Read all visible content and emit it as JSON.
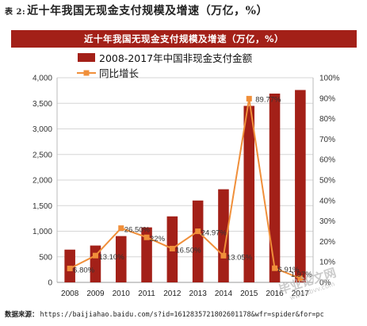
{
  "caption": {
    "tag": "表 2:",
    "title": "近十年我国无现金支付规模及增速（万亿，%）"
  },
  "banner": "近十年我国无现金支付规模及增速（万亿，%）",
  "source": {
    "label": "数据来源：",
    "url": "https://baijiahao.baidu.com/s?id=1612835721802601178&wfr=spider&for=pc"
  },
  "watermark": {
    "text": "毕业论文网",
    "subtext": "www.sbvv.com"
  },
  "colors": {
    "bar": "#a32018",
    "line": "#f08f3a",
    "banner": "#a32018",
    "grid": "#d6d6d6"
  },
  "chart_data": {
    "type": "bar",
    "categories": [
      "2008",
      "2009",
      "2010",
      "2011",
      "2012",
      "2013",
      "2014",
      "2015",
      "2016",
      "2017"
    ],
    "series": [
      {
        "name": "2008-2017年中国非现金支付金额",
        "type": "bar",
        "axis": "left",
        "values": [
          640,
          720,
          905,
          1075,
          1290,
          1600,
          1820,
          3450,
          3690,
          3760
        ]
      },
      {
        "name": "同比增长",
        "type": "line",
        "axis": "right",
        "values": [
          6.8,
          13.1,
          26.5,
          22.0,
          16.5,
          24.97,
          13.05,
          89.77,
          6.91,
          1.97
        ],
        "labels": [
          "6.80%",
          "13.10%",
          "26.50%",
          "22%",
          "16.50%",
          "24.97%",
          "13.05%",
          "89.77%",
          "6.91%",
          "1.97%"
        ]
      }
    ],
    "ylim": [
      0,
      4000
    ],
    "y_ticks": [
      "0",
      "500",
      "1,000",
      "1,500",
      "2,000",
      "2,500",
      "3,000",
      "3,500",
      "4,000"
    ],
    "y2lim": [
      0,
      100
    ],
    "y2_ticks": [
      "0%",
      "10%",
      "20%",
      "30%",
      "40%",
      "50%",
      "60%",
      "70%",
      "80%",
      "90%",
      "100%"
    ],
    "grid": true,
    "legend_position": "top-left"
  }
}
